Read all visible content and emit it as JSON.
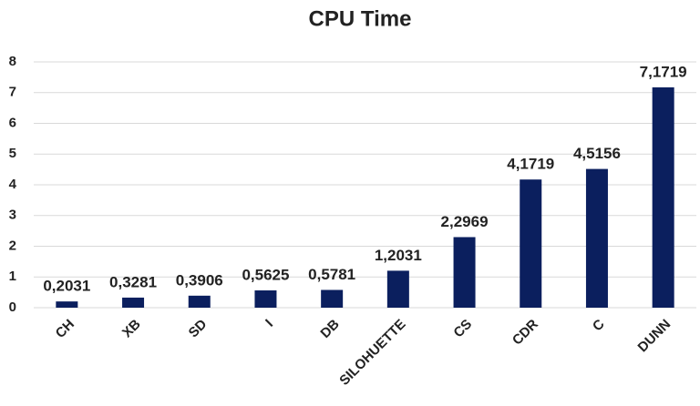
{
  "chart_data": {
    "type": "bar",
    "title": "CPU Time",
    "categories": [
      "CH",
      "XB",
      "SD",
      "I",
      "DB",
      "SILOHUETTE",
      "CS",
      "CDR",
      "C",
      "DUNN"
    ],
    "values": [
      0.2031,
      0.3281,
      0.3906,
      0.5625,
      0.5781,
      1.2031,
      2.2969,
      4.1719,
      4.5156,
      7.1719
    ],
    "value_labels": [
      "0,2031",
      "0,3281",
      "0,3906",
      "0,5625",
      "0,5781",
      "1,2031",
      "2,2969",
      "4,1719",
      "4,5156",
      "7,1719"
    ],
    "color": "#0b1f5e",
    "ylim": [
      0,
      8
    ],
    "yticks": [
      0,
      1,
      2,
      3,
      4,
      5,
      6,
      7,
      8
    ],
    "grid": true
  }
}
